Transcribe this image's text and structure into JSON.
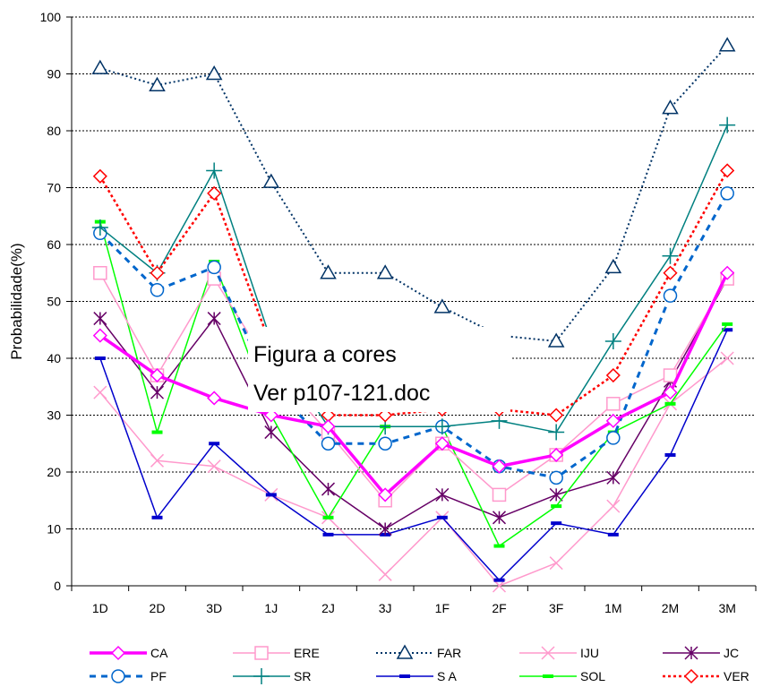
{
  "chart_data": {
    "type": "line",
    "ylabel": "Probabilidade(%)",
    "ylim": [
      0,
      100
    ],
    "yticks": [
      "0",
      "10",
      "20",
      "30",
      "40",
      "50",
      "60",
      "70",
      "80",
      "90",
      "100"
    ],
    "grid": "horizontal dotted",
    "categories": [
      "1D",
      "2D",
      "3D",
      "1J",
      "2J",
      "3J",
      "1F",
      "2F",
      "3F",
      "1M",
      "2M",
      "3M"
    ],
    "series": [
      {
        "name": "CA",
        "color": "#ff00ff",
        "marker": "diamond",
        "values": [
          44,
          37,
          33,
          30,
          28,
          16,
          25,
          21,
          23,
          29,
          34,
          55
        ]
      },
      {
        "name": "ERE",
        "color": "#ff99cc",
        "marker": "square",
        "values": [
          55,
          37,
          54,
          38,
          27,
          15,
          25,
          16,
          23,
          32,
          37,
          54
        ]
      },
      {
        "name": "FAR",
        "color": "#003366",
        "marker": "triangle",
        "values": [
          91,
          88,
          90,
          71,
          55,
          55,
          49,
          44,
          43,
          56,
          84,
          95
        ]
      },
      {
        "name": "IJU",
        "color": "#ff99cc",
        "marker": "x",
        "values": [
          34,
          22,
          21,
          16,
          12,
          2,
          12,
          0,
          4,
          14,
          32,
          40
        ]
      },
      {
        "name": "JC",
        "color": "#660066",
        "marker": "star",
        "values": [
          47,
          34,
          47,
          27,
          17,
          10,
          16,
          12,
          16,
          19,
          36,
          54
        ]
      },
      {
        "name": "PF",
        "color": "#0066cc",
        "marker": "circle",
        "values": [
          62,
          52,
          56,
          35,
          25,
          25,
          28,
          21,
          19,
          26,
          51,
          69
        ]
      },
      {
        "name": "SR",
        "color": "#008080",
        "marker": "plus",
        "values": [
          63,
          55,
          73,
          43,
          28,
          28,
          28,
          29,
          27,
          43,
          58,
          81
        ]
      },
      {
        "name": "S A",
        "color": "#0000cc",
        "marker": "dash",
        "values": [
          40,
          12,
          25,
          16,
          9,
          9,
          12,
          1,
          11,
          9,
          23,
          45
        ]
      },
      {
        "name": "SOL",
        "color": "#00ff00",
        "marker": "dash",
        "values": [
          64,
          27,
          57,
          30,
          12,
          28,
          28,
          7,
          14,
          27,
          32,
          46
        ]
      },
      {
        "name": "VER",
        "color": "#ff0000",
        "marker": "diamond",
        "values": [
          72,
          55,
          69,
          42,
          30,
          30,
          31,
          31,
          30,
          37,
          55,
          73
        ]
      }
    ],
    "annotation": [
      "Figura a cores",
      "Ver p107-121.doc"
    ]
  }
}
